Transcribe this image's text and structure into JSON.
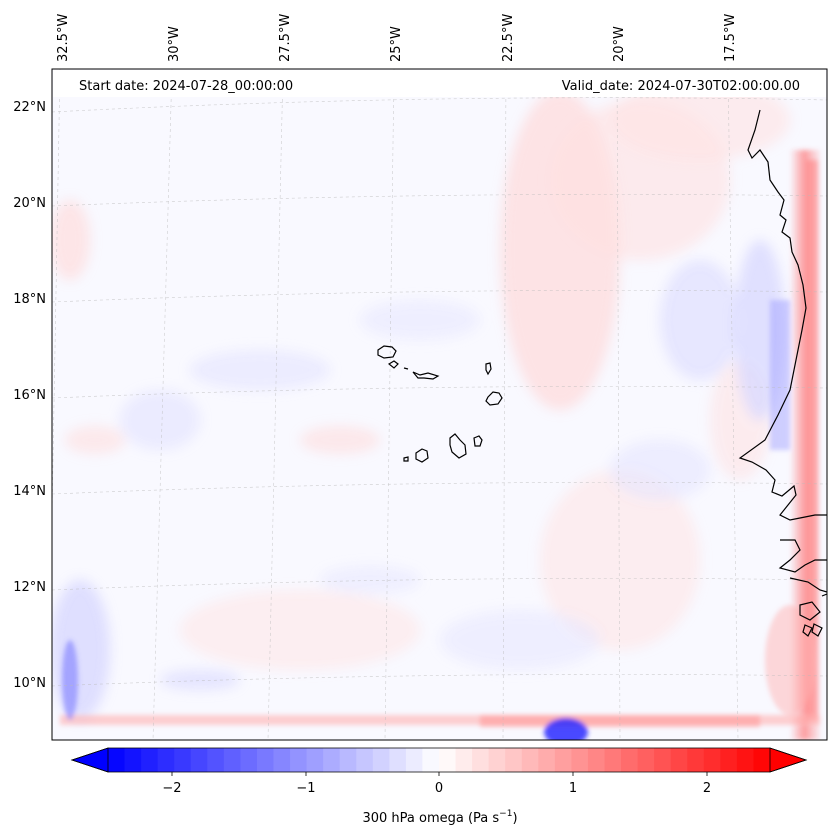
{
  "header": {
    "start_date": "Start date: 2024-07-28_00:00:00",
    "valid_date": "Valid_date: 2024-07-30T02:00:00.00"
  },
  "axes": {
    "lon_labels": [
      "32.5°W",
      "30°W",
      "27.5°W",
      "25°W",
      "22.5°W",
      "20°W",
      "17.5°W"
    ],
    "lat_labels": [
      "22°N",
      "20°N",
      "18°N",
      "16°N",
      "14°N",
      "12°N",
      "10°N"
    ]
  },
  "map": {
    "variable": "300 hPa omega",
    "colormap": "bwr",
    "background_color": "#f9f9ff",
    "land_outline_color": "#000000"
  },
  "colorbar": {
    "label_prefix": "300 hPa omega (Pa s",
    "label_exp": "−1",
    "label_suffix": ")",
    "ticks": [
      "−2",
      "−1",
      "0",
      "1",
      "2"
    ],
    "min": -2.75,
    "max": 2.75,
    "step": 0.125,
    "extend": "both"
  }
}
